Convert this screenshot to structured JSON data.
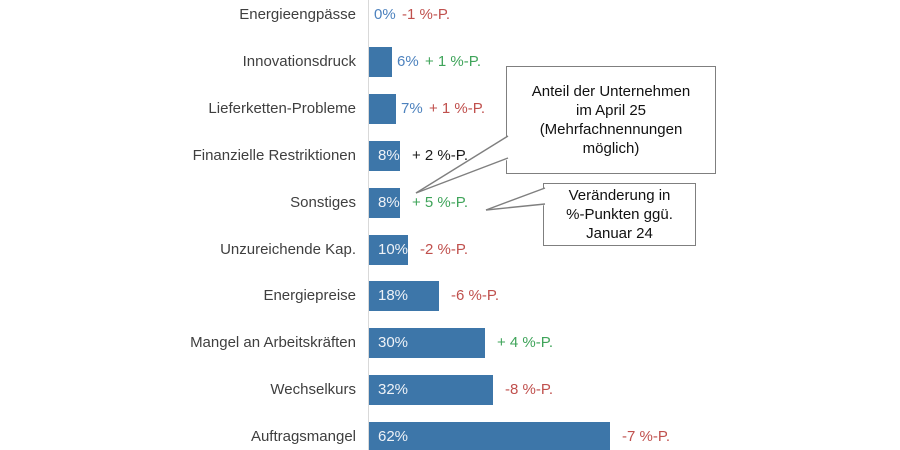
{
  "chart_data": {
    "type": "bar",
    "orientation": "horizontal",
    "title": "",
    "xlabel": "",
    "ylabel": "",
    "xlim": [
      0,
      65
    ],
    "grid": false,
    "value_unit": "%",
    "change_unit": "%-P.",
    "categories": [
      "Energieengpässe",
      "Innovationsdruck",
      "Lieferketten-Probleme",
      "Finanzielle Restriktionen",
      "Sonstiges",
      "Unzureichende Kap.",
      "Energiepreise",
      "Mangel an Arbeitskräften",
      "Wechselkurs",
      "Auftragsmangel"
    ],
    "values": [
      0,
      6,
      7,
      8,
      8,
      10,
      18,
      30,
      32,
      62
    ],
    "rows": [
      {
        "label": "Energieengpässe",
        "value": 0,
        "value_label": "0%",
        "change_label": "-1 %-P.",
        "change_color": "negative"
      },
      {
        "label": "Innovationsdruck",
        "value": 6,
        "value_label": "6%",
        "change_label": "+ 1 %-P.",
        "change_color": "positive"
      },
      {
        "label": "Lieferketten-Probleme",
        "value": 7,
        "value_label": "7%",
        "change_label": "+ 1 %-P.",
        "change_color": "negative"
      },
      {
        "label": "Finanzielle Restriktionen",
        "value": 8,
        "value_label": "8%",
        "change_label": "+ 2 %-P.",
        "change_color": "neutral"
      },
      {
        "label": "Sonstiges",
        "value": 8,
        "value_label": "8%",
        "change_label": "+ 5 %-P.",
        "change_color": "positive"
      },
      {
        "label": "Unzureichende Kap.",
        "value": 10,
        "value_label": "10%",
        "change_label": "-2 %-P.",
        "change_color": "negative"
      },
      {
        "label": "Energiepreise",
        "value": 18,
        "value_label": "18%",
        "change_label": "-6 %-P.",
        "change_color": "negative"
      },
      {
        "label": "Mangel an Arbeitskräften",
        "value": 30,
        "value_label": "30%",
        "change_label": "+ 4 %-P.",
        "change_color": "positive"
      },
      {
        "label": "Wechselkurs",
        "value": 32,
        "value_label": "32%",
        "change_label": "-8 %-P.",
        "change_color": "negative"
      },
      {
        "label": "Auftragsmangel",
        "value": 62,
        "value_label": "62%",
        "change_label": "-7 %-P.",
        "change_color": "negative"
      }
    ]
  },
  "annotations": {
    "callout_value": {
      "text": "Anteil der Unternehmen im April 25 (Mehrfachnennungen möglich)",
      "lines": [
        "Anteil der Unternehmen",
        "im April 25",
        "(Mehrfachnennungen",
        "möglich)"
      ]
    },
    "callout_change": {
      "text": "Veränderung in %-Punkten ggü. Januar 24",
      "lines": [
        "Veränderung in",
        "%-Punkten ggü.",
        "Januar 24"
      ]
    }
  },
  "colors": {
    "bar": "#3d76a9",
    "value_text_outside": "#4d82be",
    "value_text_inside": "#eef2f7",
    "positive": "#3fa45a",
    "negative": "#c0504d",
    "neutral": "#1a1a1a",
    "category_label": "#3f3f3f",
    "axis_line": "#d9d9d9",
    "callout_border": "#7f7f7f"
  }
}
